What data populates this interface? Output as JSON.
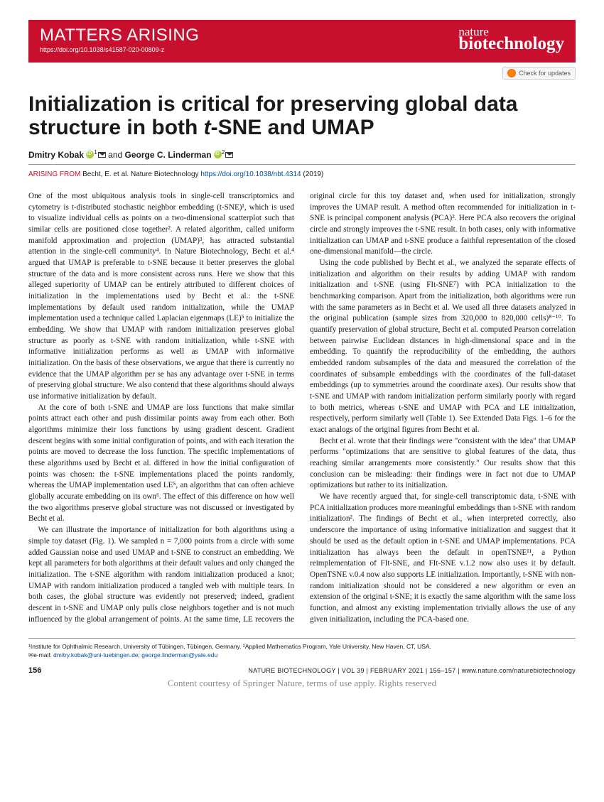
{
  "banner": {
    "section": "MATTERS ARISING",
    "doi": "https://doi.org/10.1038/s41587-020-00809-z",
    "journal_top": "nature",
    "journal_bottom": "biotechnology"
  },
  "updates_label": "Check for updates",
  "title_pre": "Initialization is critical for preserving global data structure in both ",
  "title_ital": "t",
  "title_post": "-SNE and UMAP",
  "authors": {
    "a1": "Dmitry Kobak",
    "a1_aff": "1",
    "sep": " and ",
    "a2": "George C. Linderman",
    "a2_aff": "2"
  },
  "arising": {
    "prefix": "ARISING FROM",
    "cite": "Becht, E. et al. Nature Biotechnology",
    "link": "https://doi.org/10.1038/nbt.4314",
    "year": "(2019)"
  },
  "body": {
    "p1": "One of the most ubiquitous analysis tools in single-cell transcriptomics and cytometry is t-distributed stochastic neighbor embedding (t-SNE)¹, which is used to visualize individual cells as points on a two-dimensional scatterplot such that similar cells are positioned close together². A related algorithm, called uniform manifold approximation and projection (UMAP)³, has attracted substantial attention in the single-cell community⁴. In Nature Biotechnology, Becht et al.⁴ argued that UMAP is preferable to t-SNE because it better preserves the global structure of the data and is more consistent across runs. Here we show that this alleged superiority of UMAP can be entirely attributed to different choices of initialization in the implementations used by Becht et al.: the t-SNE implementations by default used random initialization, while the UMAP implementation used a technique called Laplacian eigenmaps (LE)⁵ to initialize the embedding. We show that UMAP with random initialization preserves global structure as poorly as t-SNE with random initialization, while t-SNE with informative initialization performs as well as UMAP with informative initialization. On the basis of these observations, we argue that there is currently no evidence that the UMAP algorithm per se has any advantage over t-SNE in terms of preserving global structure. We also contend that these algorithms should always use informative initialization by default.",
    "p2": "At the core of both t-SNE and UMAP are loss functions that make similar points attract each other and push dissimilar points away from each other. Both algorithms minimize their loss functions by using gradient descent. Gradient descent begins with some initial configuration of points, and with each iteration the points are moved to decrease the loss function. The specific implementations of these algorithms used by Becht et al. differed in how the initial configuration of points was chosen: the t-SNE implementations placed the points randomly, whereas the UMAP implementation used LE⁵, an algorithm that can often achieve globally accurate embedding on its own⁶. The effect of this difference on how well the two algorithms preserve global structure was not discussed or investigated by Becht et al.",
    "p3": "We can illustrate the importance of initialization for both algorithms using a simple toy dataset (Fig. 1). We sampled n = 7,000 points from a circle with some added Gaussian noise and used UMAP and t-SNE to construct an embedding. We kept all parameters for both algorithms at their default values and only changed the initialization. The t-SNE algorithm with random initialization produced a knot; UMAP with random initialization produced a tangled web with multiple tears. In both cases, the global structure was evidently not preserved; indeed, gradient descent in t-SNE and UMAP only pulls close neighbors together and is not much influenced by the global arrangement of points. At the same time, LE recovers the original circle for this toy dataset and, when used for initialization, strongly improves the UMAP result. A method often recommended for initialization in t-SNE is principal component analysis (PCA)². Here PCA also recovers the original circle and strongly improves the t-SNE result. In both cases, only with informative initialization can UMAP and t-SNE produce a faithful representation of the closed one-dimensional manifold—the circle.",
    "p4": "Using the code published by Becht et al., we analyzed the separate effects of initialization and algorithm on their results by adding UMAP with random initialization and t-SNE (using FIt-SNE⁷) with PCA initialization to the benchmarking comparison. Apart from the initialization, both algorithms were run with the same parameters as in Becht et al. We used all three datasets analyzed in the original publication (sample sizes from 320,000 to 820,000 cells)⁸⁻¹⁰. To quantify preservation of global structure, Becht et al. computed Pearson correlation between pairwise Euclidean distances in high-dimensional space and in the embedding. To quantify the reproducibility of the embedding, the authors embedded random subsamples of the data and measured the correlation of the coordinates of subsample embeddings with the coordinates of the full-dataset embeddings (up to symmetries around the coordinate axes). Our results show that t-SNE and UMAP with random initialization perform similarly poorly with regard to both metrics, whereas t-SNE and UMAP with PCA and LE initialization, respectively, perform similarly well (Table 1). See Extended Data Figs. 1–6 for the exact analogs of the original figures from Becht et al.",
    "p5": "Becht et al. wrote that their findings were \"consistent with the idea\" that UMAP performs \"optimizations that are sensitive to global features of the data, thus reaching similar arrangements more consistently.\" Our results show that this conclusion can be misleading: their findings were in fact not due to UMAP optimizations but rather to its initialization.",
    "p6": "We have recently argued that, for single-cell transcriptomic data, t-SNE with PCA initialization produces more meaningful embeddings than t-SNE with random initialization². The findings of Becht et al., when interpreted correctly, also underscore the importance of using informative initialization and suggest that it should be used as the default option in t-SNE and UMAP implementations. PCA initialization has always been the default in openTSNE¹¹, a Python reimplementation of FIt-SNE, and FIt-SNE v.1.2 now also uses it by default. OpenTSNE v.0.4 now also supports LE initialization. Importantly, t-SNE with non-random initialization should not be considered a new algorithm or even an extension of the original t-SNE; it is exactly the same algorithm with the same loss function, and almost any existing implementation trivially allows the use of any given initialization, including the PCA-based one."
  },
  "affiliations": {
    "line1": "¹Institute for Ophthalmic Research, University of Tübingen, Tübingen, Germany. ²Applied Mathematics Program, Yale University, New Haven, CT, USA.",
    "email_label": "✉e-mail:",
    "email1": "dmitry.kobak@uni-tuebingen.de",
    "email2": "george.linderman@yale.edu"
  },
  "footer": {
    "page": "156",
    "cite": "NATURE BIOTECHNOLOGY | VOL 39 | FEBRUARY 2021 | 156–157 | www.nature.com/naturebiotechnology"
  },
  "courtesy": "Content courtesy of Springer Nature, terms of use apply. Rights reserved"
}
